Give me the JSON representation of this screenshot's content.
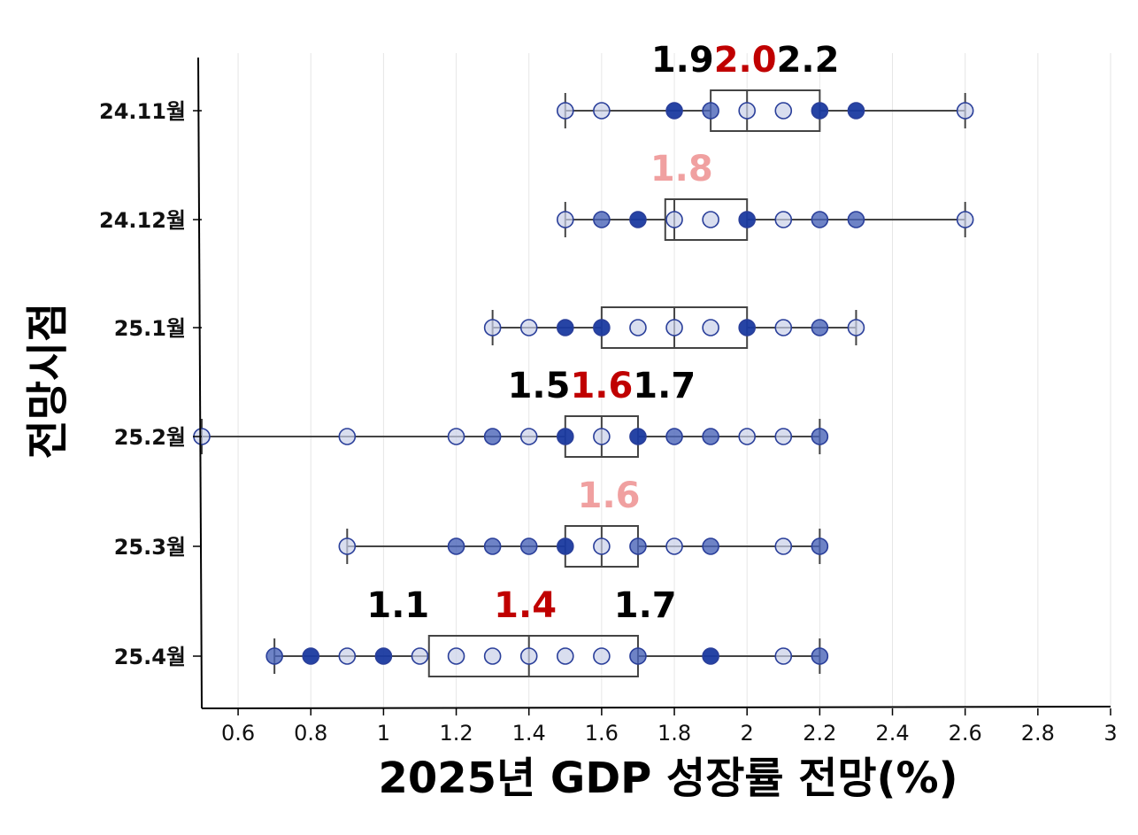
{
  "chart_data": {
    "type": "boxplot-strip",
    "orientation": "horizontal",
    "xlabel": "2025년 GDP 성장률 전망(%)",
    "ylabel": "전망시점",
    "xlim": [
      0.5,
      3.0
    ],
    "x_ticks": [
      "0.6",
      "0.8",
      "1",
      "1.2",
      "1.4",
      "1.6",
      "1.8",
      "2",
      "2.2",
      "2.4",
      "2.6",
      "2.8",
      "3"
    ],
    "x_tick_values": [
      0.6,
      0.8,
      1.0,
      1.2,
      1.4,
      1.6,
      1.8,
      2.0,
      2.2,
      2.4,
      2.6,
      2.8,
      3.0
    ],
    "grid": "vertical",
    "categories": [
      "24.11월",
      "24.12월",
      "25.1월",
      "25.2월",
      "25.3월",
      "25.4월"
    ],
    "boxes": [
      {
        "label": "24.11월",
        "whisker_low": 1.5,
        "q1": 1.9,
        "median": 2.0,
        "q3": 2.2,
        "whisker_high": 2.6,
        "points": [
          1.5,
          1.6,
          1.8,
          1.9,
          2.0,
          2.1,
          2.2,
          2.3,
          2.6
        ],
        "point_density": [
          "low",
          "low",
          "high",
          "mid",
          "low",
          "low",
          "high",
          "high",
          "low"
        ]
      },
      {
        "label": "24.12월",
        "whisker_low": 1.5,
        "q1": 1.775,
        "median": 1.8,
        "q3": 2.0,
        "whisker_high": 2.6,
        "points": [
          1.5,
          1.6,
          1.7,
          1.8,
          1.9,
          2.0,
          2.1,
          2.2,
          2.3,
          2.6
        ],
        "point_density": [
          "low",
          "mid",
          "high",
          "low",
          "low",
          "high",
          "low",
          "mid",
          "mid",
          "low"
        ]
      },
      {
        "label": "25.1월",
        "whisker_low": 1.3,
        "q1": 1.6,
        "median": 1.8,
        "q3": 2.0,
        "whisker_high": 2.3,
        "points": [
          1.3,
          1.4,
          1.5,
          1.6,
          1.7,
          1.8,
          1.9,
          2.0,
          2.1,
          2.2,
          2.3
        ],
        "point_density": [
          "low",
          "low",
          "high",
          "high",
          "low",
          "low",
          "low",
          "high",
          "low",
          "mid",
          "low"
        ]
      },
      {
        "label": "25.2월",
        "whisker_low": 0.5,
        "q1": 1.5,
        "median": 1.6,
        "q3": 1.7,
        "whisker_high": 2.2,
        "points": [
          0.5,
          0.9,
          1.2,
          1.3,
          1.4,
          1.5,
          1.6,
          1.7,
          1.8,
          1.9,
          2.0,
          2.1,
          2.2
        ],
        "point_density": [
          "low",
          "low",
          "low",
          "mid",
          "low",
          "high",
          "low",
          "high",
          "mid",
          "mid",
          "low",
          "low",
          "mid"
        ]
      },
      {
        "label": "25.3월",
        "whisker_low": 0.9,
        "q1": 1.5,
        "median": 1.6,
        "q3": 1.7,
        "whisker_high": 2.2,
        "points": [
          0.9,
          1.2,
          1.3,
          1.4,
          1.5,
          1.6,
          1.7,
          1.8,
          1.9,
          2.1,
          2.2
        ],
        "point_density": [
          "low",
          "mid",
          "mid",
          "mid",
          "high",
          "low",
          "mid",
          "low",
          "mid",
          "low",
          "mid"
        ]
      },
      {
        "label": "25.4월",
        "whisker_low": 0.7,
        "q1": 1.125,
        "median": 1.4,
        "q3": 1.7,
        "whisker_high": 2.2,
        "points": [
          0.7,
          0.8,
          0.9,
          1.0,
          1.1,
          1.2,
          1.3,
          1.4,
          1.5,
          1.6,
          1.7,
          1.9,
          2.1,
          2.2
        ],
        "point_density": [
          "mid",
          "high",
          "low",
          "high",
          "low",
          "low",
          "low",
          "low",
          "low",
          "low",
          "mid",
          "high",
          "low",
          "mid"
        ]
      }
    ],
    "annotations": [
      {
        "row": "24.11월",
        "parts": [
          {
            "text": "1.9",
            "color": "#000000"
          },
          {
            "text": "2.0",
            "color": "#c00000"
          },
          {
            "text": "2.2",
            "color": "#000000"
          }
        ]
      },
      {
        "row": "24.12월",
        "parts": [
          {
            "text": "1.8",
            "color": "#f0a0a0"
          }
        ]
      },
      {
        "row": "25.2월",
        "parts": [
          {
            "text": "1.5",
            "color": "#000000"
          },
          {
            "text": "1.6",
            "color": "#c00000"
          },
          {
            "text": "1.7",
            "color": "#000000"
          }
        ]
      },
      {
        "row": "25.3월",
        "parts": [
          {
            "text": "1.6",
            "color": "#f0a0a0"
          }
        ]
      },
      {
        "row": "25.4월",
        "parts": [
          {
            "text": "1.1",
            "color": "#000000"
          },
          {
            "text": "1.4",
            "color": "#c00000"
          },
          {
            "text": "1.7",
            "color": "#000000"
          }
        ]
      }
    ],
    "colors": {
      "point_fill_high": "#1a3aa0",
      "point_fill_mid": "#4a64b8",
      "point_fill_low": "#c9d0e8",
      "point_stroke": "#2a3f9a",
      "box_stroke": "#444444",
      "grid": "#e6e6e6",
      "axis": "#000000"
    }
  }
}
